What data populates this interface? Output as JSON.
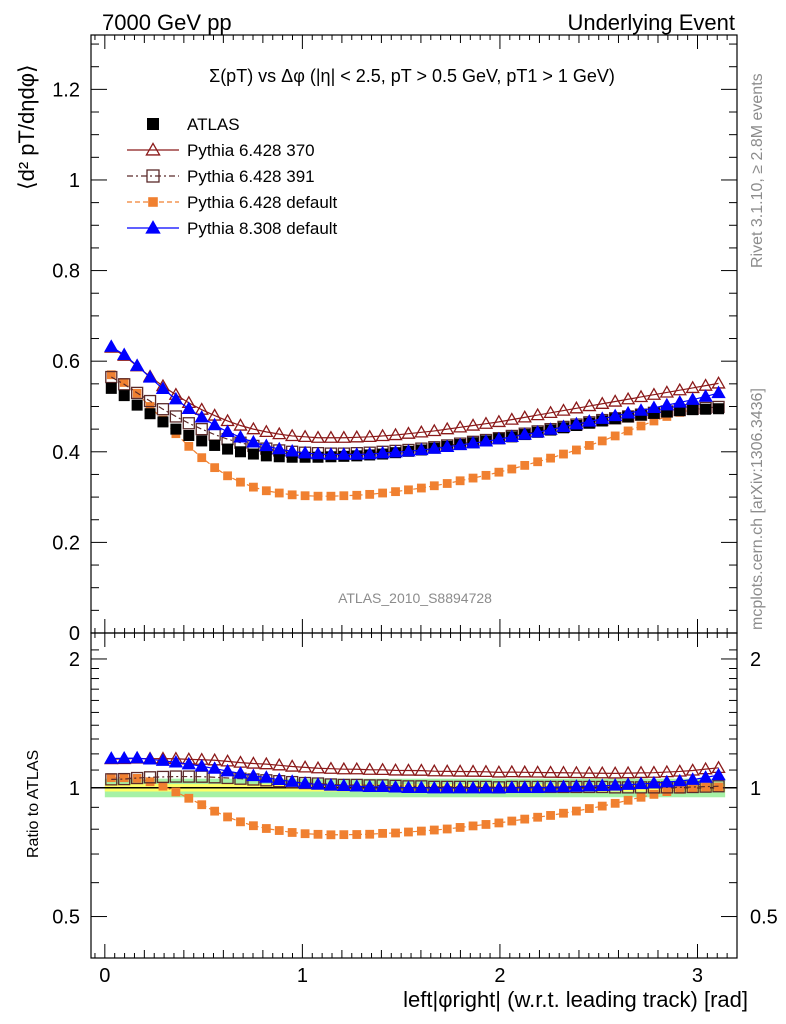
{
  "header": {
    "left": "7000 GeV pp",
    "right": "Underlying Event"
  },
  "side_text": {
    "rivet": "Rivet 3.1.10, ≥ 2.8M events",
    "mcplots": "mcplots.cern.ch [arXiv:1306.3436]"
  },
  "watermark": "ATLAS_2010_S8894728",
  "chart_data": [
    {
      "type": "scatter",
      "title": "Σ(pT) vs Δφ (|η| < 2.5, pT > 0.5 GeV, pT1 > 1 GeV)",
      "ylabel": "⟨d² pT/dηdφ⟩",
      "xlabel": "left|φright| (w.r.t. leading track) [rad]",
      "xlim": [
        -0.07,
        3.2
      ],
      "ylim": [
        0,
        1.32
      ],
      "x_ticks": [
        "0",
        "1",
        "2",
        "3"
      ],
      "y_ticks": [
        "0",
        "0.2",
        "0.4",
        "0.6",
        "0.8",
        "1",
        "1.2"
      ],
      "legend_position": "top-left",
      "series": [
        {
          "name": "ATLAS",
          "color": "#000000",
          "marker": "filled-square",
          "x_start": 0.0327,
          "x_step": 0.0654,
          "values": [
            0.54,
            0.524,
            0.503,
            0.484,
            0.466,
            0.45,
            0.436,
            0.424,
            0.414,
            0.406,
            0.4,
            0.395,
            0.391,
            0.389,
            0.388,
            0.388,
            0.388,
            0.389,
            0.39,
            0.391,
            0.393,
            0.395,
            0.398,
            0.401,
            0.404,
            0.408,
            0.412,
            0.416,
            0.42,
            0.424,
            0.429,
            0.433,
            0.438,
            0.443,
            0.448,
            0.453,
            0.458,
            0.463,
            0.468,
            0.473,
            0.477,
            0.481,
            0.485,
            0.488,
            0.491,
            0.493,
            0.494,
            0.495
          ]
        },
        {
          "name": "Pythia 6.428 370",
          "color": "#8b1a1a",
          "marker": "open-triangle",
          "x_start": 0.0327,
          "x_step": 0.0654,
          "values": [
            0.63,
            0.612,
            0.589,
            0.566,
            0.545,
            0.526,
            0.508,
            0.493,
            0.48,
            0.468,
            0.458,
            0.45,
            0.444,
            0.439,
            0.435,
            0.433,
            0.431,
            0.431,
            0.431,
            0.432,
            0.433,
            0.435,
            0.437,
            0.44,
            0.443,
            0.446,
            0.45,
            0.454,
            0.458,
            0.462,
            0.466,
            0.471,
            0.476,
            0.481,
            0.486,
            0.491,
            0.496,
            0.501,
            0.506,
            0.511,
            0.516,
            0.521,
            0.526,
            0.531,
            0.536,
            0.541,
            0.546,
            0.551
          ]
        },
        {
          "name": "Pythia 6.428 391",
          "color": "#5a2a2a",
          "marker": "open-square",
          "x_start": 0.0327,
          "x_step": 0.0654,
          "values": [
            0.565,
            0.549,
            0.53,
            0.512,
            0.494,
            0.478,
            0.463,
            0.45,
            0.438,
            0.428,
            0.42,
            0.413,
            0.407,
            0.403,
            0.4,
            0.398,
            0.397,
            0.396,
            0.396,
            0.397,
            0.398,
            0.4,
            0.402,
            0.404,
            0.407,
            0.41,
            0.414,
            0.418,
            0.422,
            0.426,
            0.43,
            0.435,
            0.44,
            0.445,
            0.45,
            0.455,
            0.46,
            0.465,
            0.47,
            0.474,
            0.478,
            0.482,
            0.486,
            0.489,
            0.492,
            0.495,
            0.497,
            0.499
          ]
        },
        {
          "name": "Pythia 6.428 default",
          "color": "#f08030",
          "marker": "filled-square-small",
          "x_start": 0.0327,
          "x_step": 0.0654,
          "values": [
            0.57,
            0.553,
            0.529,
            0.5,
            0.47,
            0.44,
            0.412,
            0.387,
            0.365,
            0.347,
            0.333,
            0.322,
            0.314,
            0.309,
            0.305,
            0.303,
            0.302,
            0.302,
            0.303,
            0.304,
            0.306,
            0.309,
            0.312,
            0.316,
            0.32,
            0.325,
            0.33,
            0.336,
            0.342,
            0.348,
            0.355,
            0.362,
            0.37,
            0.378,
            0.386,
            0.395,
            0.404,
            0.414,
            0.424,
            0.435,
            0.446,
            0.457,
            0.468,
            0.478,
            0.487,
            0.493,
            0.496,
            0.497
          ]
        },
        {
          "name": "Pythia 8.308 default",
          "color": "#0000ff",
          "marker": "filled-triangle",
          "x_start": 0.0327,
          "x_step": 0.0654,
          "values": [
            0.632,
            0.614,
            0.59,
            0.564,
            0.539,
            0.516,
            0.495,
            0.476,
            0.459,
            0.444,
            0.432,
            0.421,
            0.413,
            0.406,
            0.401,
            0.397,
            0.395,
            0.394,
            0.394,
            0.394,
            0.395,
            0.397,
            0.399,
            0.401,
            0.404,
            0.407,
            0.411,
            0.415,
            0.419,
            0.423,
            0.428,
            0.433,
            0.438,
            0.443,
            0.449,
            0.455,
            0.461,
            0.467,
            0.473,
            0.479,
            0.485,
            0.491,
            0.497,
            0.503,
            0.509,
            0.515,
            0.522,
            0.53
          ]
        }
      ]
    },
    {
      "type": "scatter",
      "ylabel": "Ratio to ATLAS",
      "xlabel": "left|φright| (w.r.t. leading track) [rad]",
      "xlim": [
        -0.07,
        3.2
      ],
      "ylim": [
        0.4,
        2.3
      ],
      "log_y": true,
      "y_ticks": [
        "0.5",
        "1",
        "2"
      ],
      "reference_band": {
        "inner": [
          0.98,
          1.02
        ],
        "outer": [
          0.95,
          1.05
        ],
        "inner_color": "#ffff66",
        "outer_color": "#90ee90"
      }
    }
  ]
}
